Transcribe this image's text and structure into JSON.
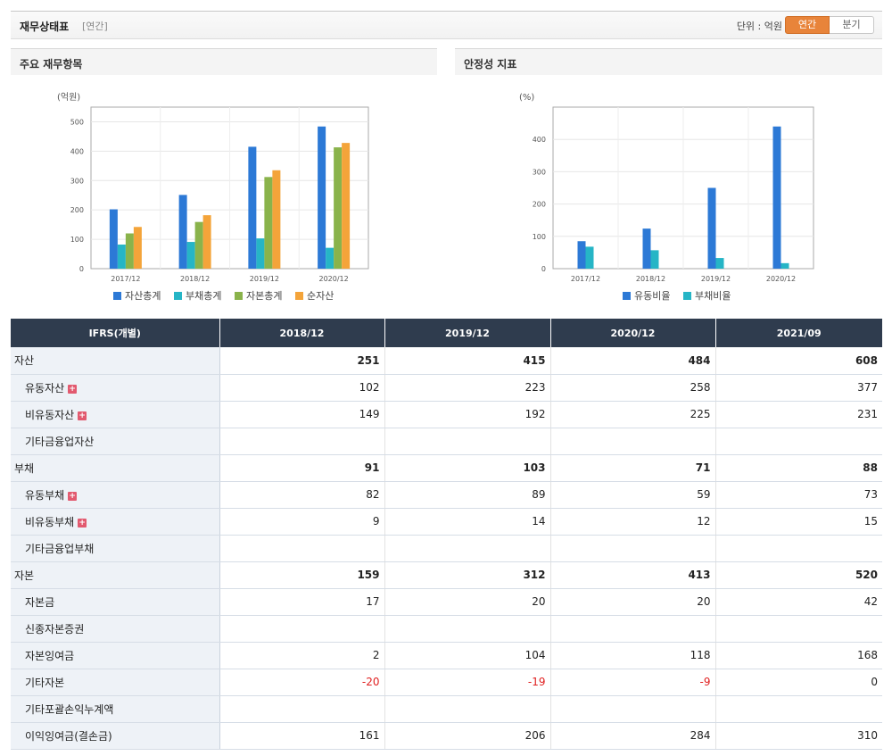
{
  "header": {
    "title": "재무상태표",
    "period_tag": "[연간]",
    "unit": "단위 : 억원",
    "toggle": [
      "연간",
      "분기"
    ]
  },
  "charts": {
    "left_title": "주요 재무항목",
    "right_title": "안정성 지표"
  },
  "chart_data": [
    {
      "type": "bar",
      "title": "주요 재무항목",
      "ylabel": "(억원)",
      "ylim": [
        0,
        550
      ],
      "yticks": [
        0,
        100,
        200,
        300,
        400,
        500
      ],
      "categories": [
        "2017/12",
        "2018/12",
        "2019/12",
        "2020/12"
      ],
      "series": [
        {
          "name": "자산총계",
          "color": "#2c79d6",
          "values": [
            202,
            251,
            415,
            484
          ]
        },
        {
          "name": "부채총계",
          "color": "#26b5c6",
          "values": [
            82,
            91,
            103,
            71
          ]
        },
        {
          "name": "자본총계",
          "color": "#8ab34b",
          "values": [
            120,
            159,
            312,
            413
          ]
        },
        {
          "name": "순자산",
          "color": "#f4a43a",
          "values": [
            142,
            182,
            335,
            428
          ]
        }
      ],
      "grid": true,
      "legend": "bottom"
    },
    {
      "type": "bar",
      "title": "안정성 지표",
      "ylabel": "(%)",
      "ylim": [
        0,
        500
      ],
      "yticks": [
        0,
        100,
        200,
        300,
        400
      ],
      "categories": [
        "2017/12",
        "2018/12",
        "2019/12",
        "2020/12"
      ],
      "series": [
        {
          "name": "유동비율",
          "color": "#2c79d6",
          "values": [
            85,
            124,
            250,
            440
          ]
        },
        {
          "name": "부채비율",
          "color": "#26b5c6",
          "values": [
            68,
            57,
            33,
            17
          ]
        }
      ],
      "grid": true,
      "legend": "bottom"
    }
  ],
  "table": {
    "headers": [
      "IFRS(개별)",
      "2018/12",
      "2019/12",
      "2020/12",
      "2021/09"
    ],
    "rows": [
      {
        "label": "자산",
        "type": "main",
        "plus": false,
        "values": [
          "251",
          "415",
          "484",
          "608"
        ]
      },
      {
        "label": "유동자산",
        "type": "sub",
        "plus": true,
        "values": [
          "102",
          "223",
          "258",
          "377"
        ]
      },
      {
        "label": "비유동자산",
        "type": "sub",
        "plus": true,
        "values": [
          "149",
          "192",
          "225",
          "231"
        ]
      },
      {
        "label": "기타금융업자산",
        "type": "sub",
        "plus": false,
        "values": [
          "",
          "",
          "",
          ""
        ]
      },
      {
        "label": "부채",
        "type": "main",
        "plus": false,
        "values": [
          "91",
          "103",
          "71",
          "88"
        ]
      },
      {
        "label": "유동부채",
        "type": "sub",
        "plus": true,
        "values": [
          "82",
          "89",
          "59",
          "73"
        ]
      },
      {
        "label": "비유동부채",
        "type": "sub",
        "plus": true,
        "values": [
          "9",
          "14",
          "12",
          "15"
        ]
      },
      {
        "label": "기타금융업부채",
        "type": "sub",
        "plus": false,
        "values": [
          "",
          "",
          "",
          ""
        ]
      },
      {
        "label": "자본",
        "type": "main",
        "plus": false,
        "values": [
          "159",
          "312",
          "413",
          "520"
        ]
      },
      {
        "label": "자본금",
        "type": "sub",
        "plus": false,
        "values": [
          "17",
          "20",
          "20",
          "42"
        ]
      },
      {
        "label": "신종자본증권",
        "type": "sub",
        "plus": false,
        "values": [
          "",
          "",
          "",
          ""
        ]
      },
      {
        "label": "자본잉여금",
        "type": "sub",
        "plus": false,
        "values": [
          "2",
          "104",
          "118",
          "168"
        ]
      },
      {
        "label": "기타자본",
        "type": "sub",
        "plus": false,
        "values": [
          "-20",
          "-19",
          "-9",
          "0"
        ]
      },
      {
        "label": "기타포괄손익누계액",
        "type": "sub",
        "plus": false,
        "values": [
          "",
          "",
          "",
          ""
        ]
      },
      {
        "label": "이익잉여금(결손금)",
        "type": "sub",
        "plus": false,
        "values": [
          "161",
          "206",
          "284",
          "310"
        ]
      }
    ]
  }
}
